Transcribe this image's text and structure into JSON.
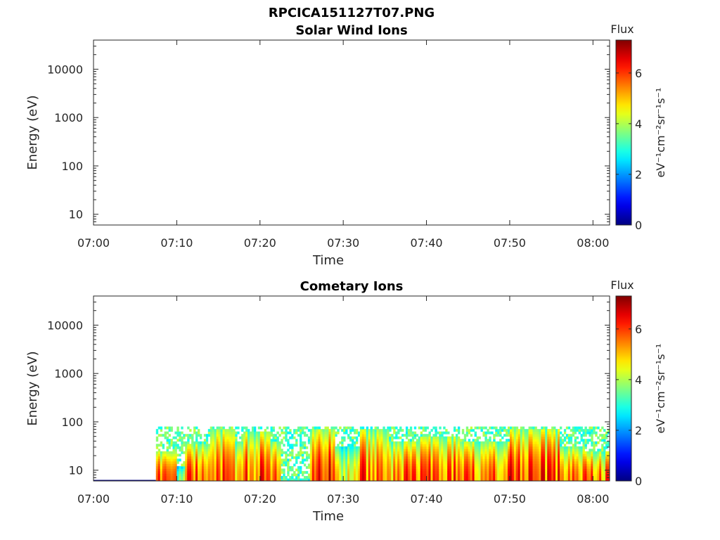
{
  "figure": {
    "filename": "RPCICA151127T07.PNG"
  },
  "chart_data": [
    {
      "type": "heatmap",
      "title": "Solar Wind Ions",
      "xlabel": "Time",
      "ylabel": "Energy (eV)",
      "x_ticks": [
        "07:00",
        "07:10",
        "07:20",
        "07:30",
        "07:40",
        "07:50",
        "08:00"
      ],
      "xlim": [
        "07:00",
        "08:02"
      ],
      "y_scale": "log",
      "y_ticks": [
        "10",
        "100",
        "1000",
        "10000"
      ],
      "ylim": [
        6,
        40000
      ],
      "colorbar": {
        "title": "Flux",
        "label": "eV⁻¹cm⁻²sr⁻¹s⁻¹",
        "ticks": [
          "0",
          "2",
          "4",
          "6"
        ],
        "range": [
          0,
          7.3
        ],
        "colormap": "jet"
      },
      "segments": []
    },
    {
      "type": "heatmap",
      "title": "Cometary Ions",
      "xlabel": "Time",
      "ylabel": "Energy (eV)",
      "x_ticks": [
        "07:00",
        "07:10",
        "07:20",
        "07:30",
        "07:40",
        "07:50",
        "08:00"
      ],
      "xlim": [
        "07:00",
        "08:02"
      ],
      "y_scale": "log",
      "y_ticks": [
        "10",
        "100",
        "1000",
        "10000"
      ],
      "ylim": [
        6,
        40000
      ],
      "colorbar": {
        "title": "Flux",
        "label": "eV⁻¹cm⁻²sr⁻¹s⁻¹",
        "ticks": [
          "0",
          "2",
          "4",
          "6"
        ],
        "range": [
          0,
          7.3
        ],
        "colormap": "jet"
      },
      "data_time_range": [
        "07:07:30",
        "08:02:00"
      ],
      "data_energy_top_eV": 80,
      "segments": [
        {
          "t0": 7.6,
          "t1": 9.8,
          "peak_flux": 7.0,
          "top_eV": 25
        },
        {
          "t0": 9.8,
          "t1": 11.0,
          "peak_flux": 4.5,
          "top_eV": 12
        },
        {
          "t0": 11.0,
          "t1": 14.0,
          "peak_flux": 7.0,
          "top_eV": 35
        },
        {
          "t0": 14.0,
          "t1": 16.8,
          "peak_flux": 7.2,
          "top_eV": 70
        },
        {
          "t0": 16.8,
          "t1": 18.0,
          "peak_flux": 5.5,
          "top_eV": 40
        },
        {
          "t0": 18.0,
          "t1": 21.2,
          "peak_flux": 7.1,
          "top_eV": 60
        },
        {
          "t0": 21.2,
          "t1": 22.3,
          "peak_flux": 6.5,
          "top_eV": 40
        },
        {
          "t0": 22.3,
          "t1": 26.0,
          "peak_flux": 4.0,
          "top_eV": 7
        },
        {
          "t0": 26.0,
          "t1": 29.0,
          "peak_flux": 7.3,
          "top_eV": 70
        },
        {
          "t0": 29.0,
          "t1": 32.0,
          "peak_flux": 5.5,
          "top_eV": 30
        },
        {
          "t0": 32.0,
          "t1": 35.5,
          "peak_flux": 7.0,
          "top_eV": 70
        },
        {
          "t0": 35.5,
          "t1": 39.0,
          "peak_flux": 6.6,
          "top_eV": 40
        },
        {
          "t0": 39.0,
          "t1": 44.0,
          "peak_flux": 6.9,
          "top_eV": 50
        },
        {
          "t0": 44.0,
          "t1": 50.0,
          "peak_flux": 6.7,
          "top_eV": 40
        },
        {
          "t0": 50.0,
          "t1": 56.0,
          "peak_flux": 7.1,
          "top_eV": 70
        },
        {
          "t0": 56.0,
          "t1": 59.0,
          "peak_flux": 6.7,
          "top_eV": 30
        },
        {
          "t0": 59.0,
          "t1": 62.0,
          "peak_flux": 6.5,
          "top_eV": 25
        }
      ]
    }
  ]
}
